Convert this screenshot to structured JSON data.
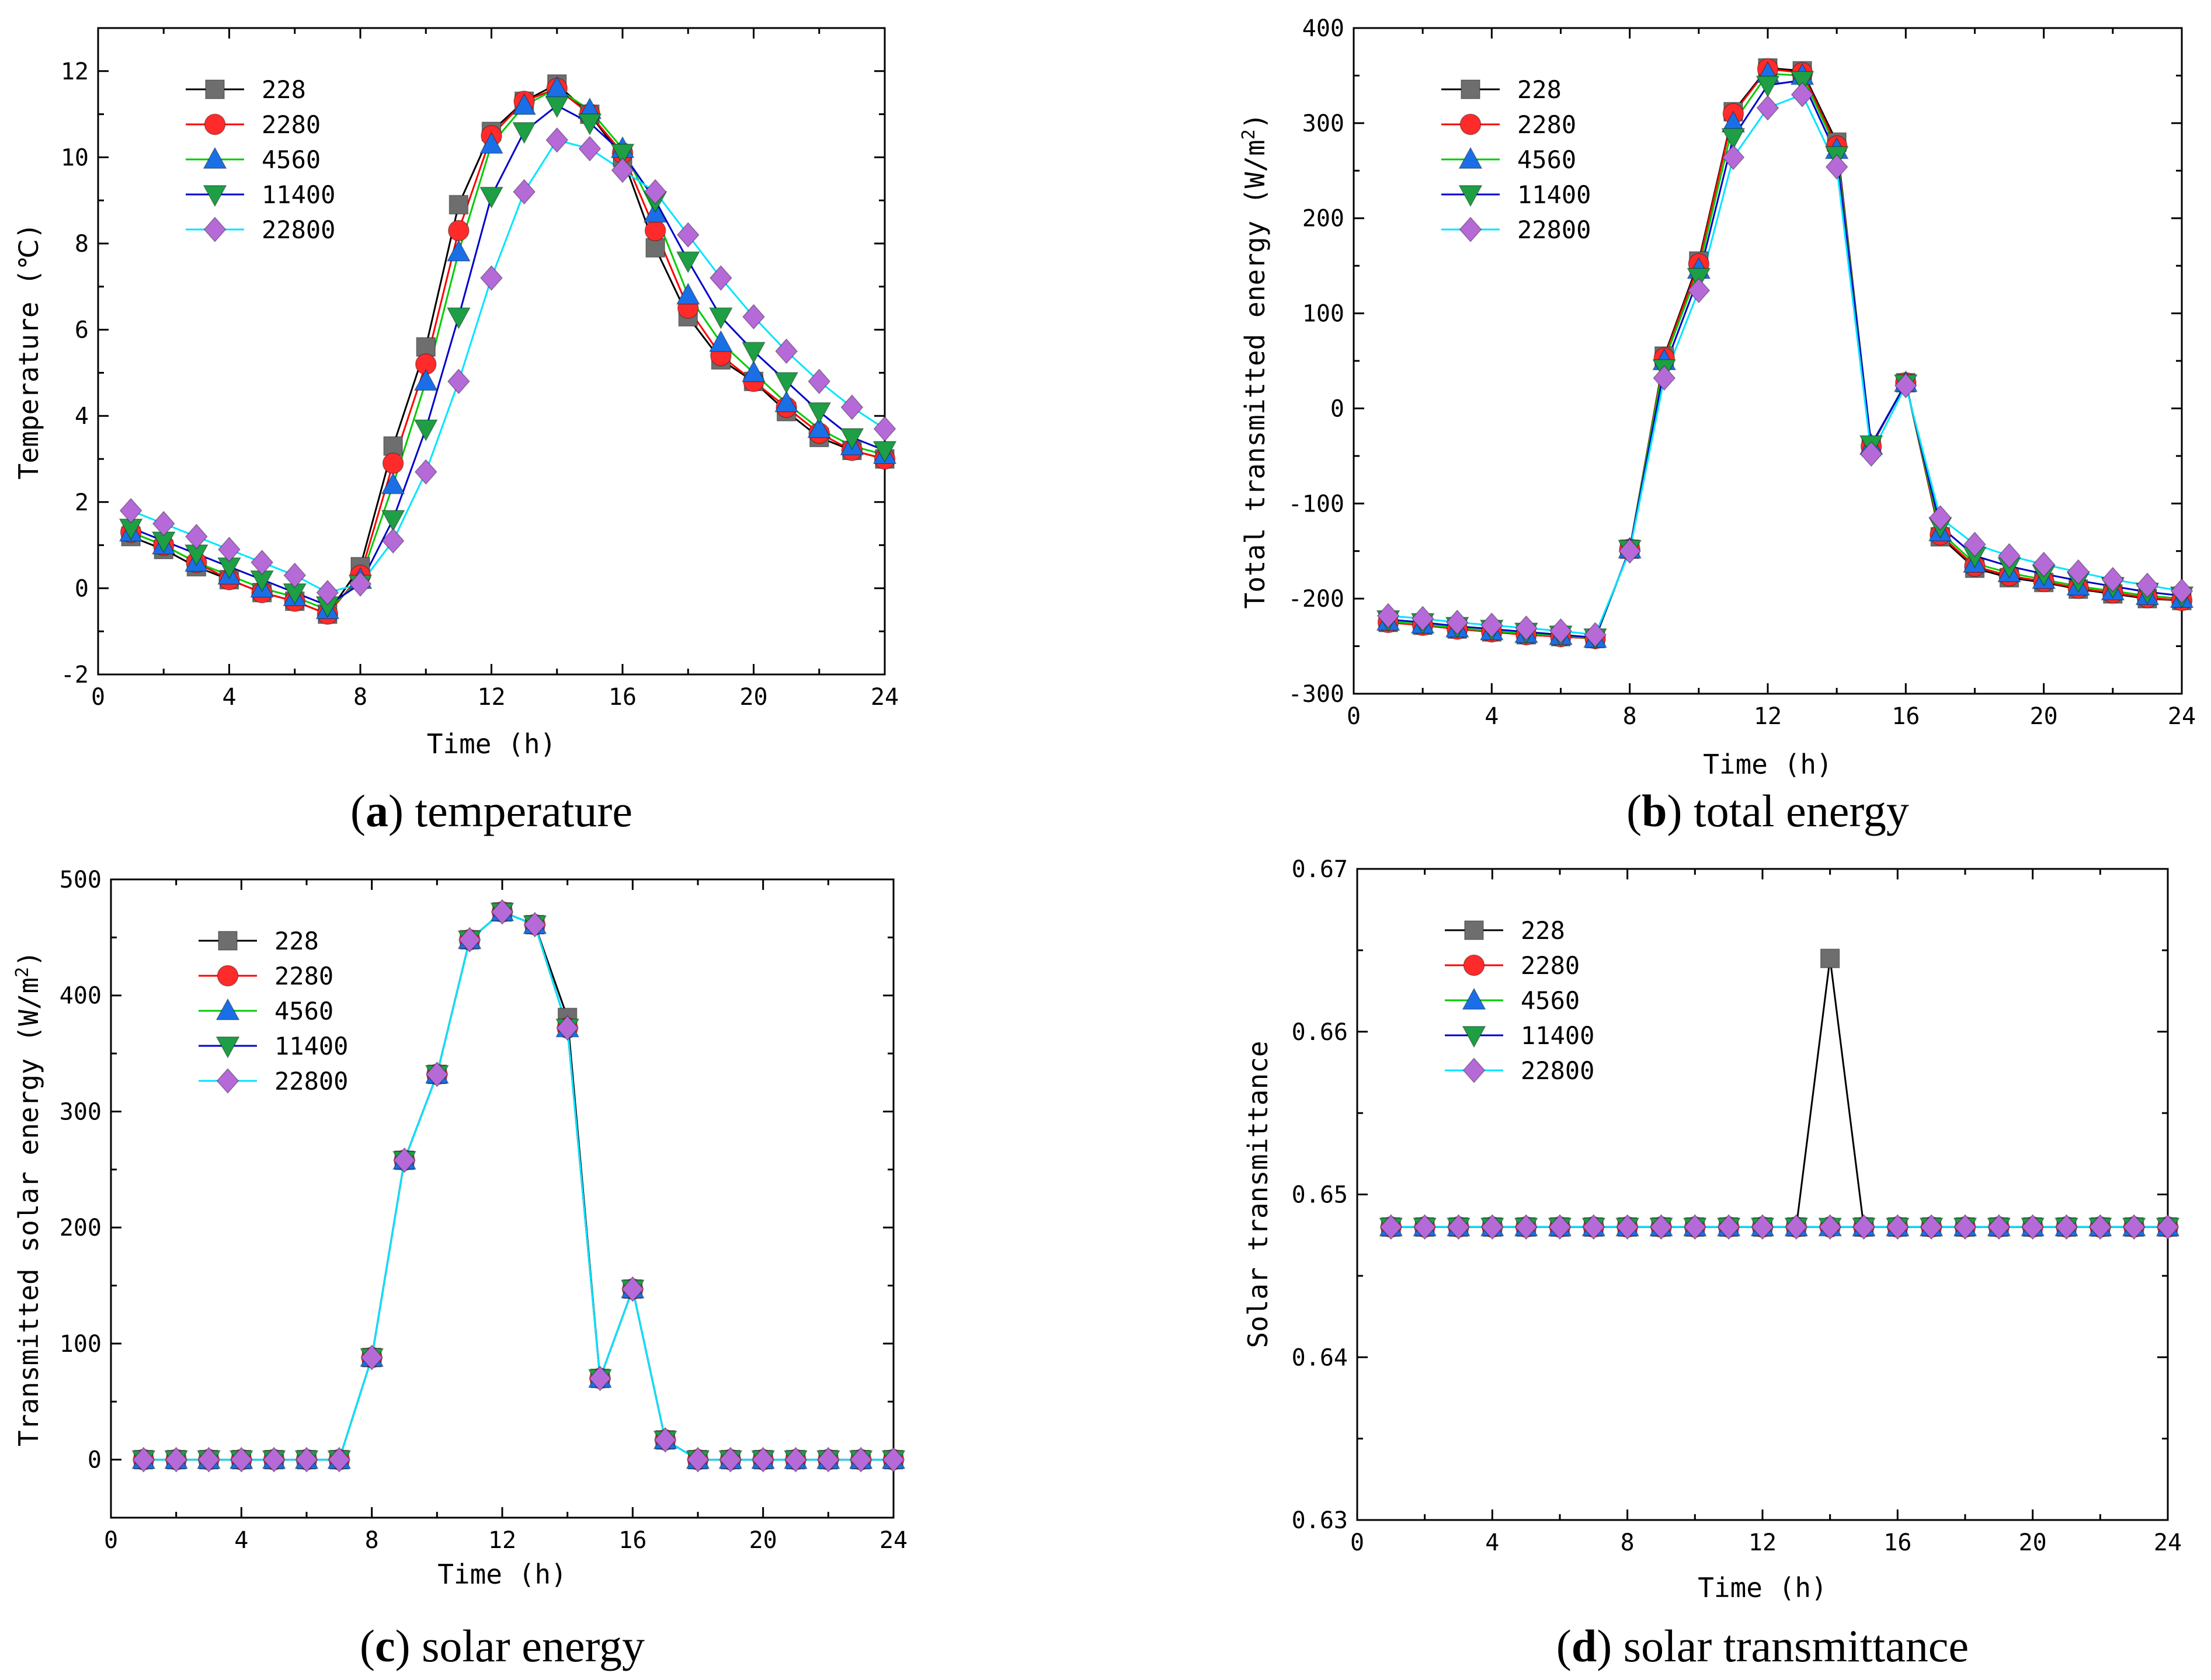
{
  "colors": {
    "228": "#6e6e6e",
    "2280": "#ff2b2b",
    "4560": "#1a6fe6",
    "11400": "#1e9e45",
    "22800": "#b56ad8",
    "line_228": "#000000",
    "line_2280": "#ff0000",
    "line_4560": "#00cc00",
    "line_11400": "#0000cc",
    "line_22800": "#00e5ff"
  },
  "chart_data": [
    {
      "id": "a",
      "type": "line",
      "caption_letter": "a",
      "caption_text": " temperature",
      "xlabel": "Time (h)",
      "ylabel": "Temperature (℃)",
      "xlim": [
        0,
        24
      ],
      "ylim": [
        -2,
        13
      ],
      "xticks": [
        0,
        4,
        8,
        12,
        16,
        20,
        24
      ],
      "yticks": [
        -2,
        0,
        2,
        4,
        6,
        8,
        10,
        12
      ],
      "ytick_labels": [
        "-2",
        "0",
        "2",
        "4",
        "6",
        "8",
        "10",
        "12"
      ],
      "legend_position": "top-left",
      "x": [
        1,
        2,
        3,
        4,
        5,
        6,
        7,
        8,
        9,
        10,
        11,
        12,
        13,
        14,
        15,
        16,
        17,
        18,
        19,
        20,
        21,
        22,
        23,
        24
      ],
      "series": [
        {
          "name": "228",
          "marker": "square",
          "values": [
            1.2,
            0.9,
            0.5,
            0.2,
            -0.1,
            -0.3,
            -0.6,
            0.5,
            3.3,
            5.6,
            8.9,
            10.6,
            11.3,
            11.7,
            11.0,
            10.0,
            7.9,
            6.3,
            5.3,
            4.8,
            4.1,
            3.5,
            3.2,
            3.0
          ]
        },
        {
          "name": "2280",
          "marker": "circle",
          "values": [
            1.3,
            1.0,
            0.6,
            0.2,
            -0.1,
            -0.3,
            -0.6,
            0.3,
            2.9,
            5.2,
            8.3,
            10.5,
            11.3,
            11.6,
            11.0,
            10.1,
            8.3,
            6.5,
            5.4,
            4.8,
            4.2,
            3.6,
            3.2,
            3.0
          ]
        },
        {
          "name": "4560",
          "marker": "triangle-up",
          "values": [
            1.3,
            1.0,
            0.6,
            0.3,
            0.0,
            -0.2,
            -0.5,
            0.2,
            2.4,
            4.8,
            7.8,
            10.3,
            11.2,
            11.6,
            11.1,
            10.2,
            8.7,
            6.8,
            5.7,
            5.0,
            4.3,
            3.7,
            3.3,
            3.1
          ]
        },
        {
          "name": "11400",
          "marker": "triangle-down",
          "values": [
            1.4,
            1.1,
            0.8,
            0.5,
            0.2,
            -0.1,
            -0.4,
            0.1,
            1.6,
            3.7,
            6.3,
            9.1,
            10.6,
            11.2,
            10.8,
            10.1,
            9.0,
            7.6,
            6.3,
            5.5,
            4.8,
            4.1,
            3.5,
            3.2
          ]
        },
        {
          "name": "22800",
          "marker": "diamond",
          "values": [
            1.8,
            1.5,
            1.2,
            0.9,
            0.6,
            0.3,
            -0.1,
            0.1,
            1.1,
            2.7,
            4.8,
            7.2,
            9.2,
            10.4,
            10.2,
            9.7,
            9.2,
            8.2,
            7.2,
            6.3,
            5.5,
            4.8,
            4.2,
            3.7
          ]
        }
      ]
    },
    {
      "id": "b",
      "type": "line",
      "caption_letter": "b",
      "caption_text": " total energy",
      "xlabel": "Time (h)",
      "ylabel": "Total transmitted energy (W/m²)",
      "xlim": [
        0,
        24
      ],
      "ylim": [
        -300,
        400
      ],
      "xticks": [
        0,
        4,
        8,
        12,
        16,
        20,
        24
      ],
      "yticks": [
        -300,
        -200,
        -100,
        0,
        100,
        200,
        300,
        400
      ],
      "ytick_labels": [
        "-300",
        "-200",
        "-100",
        "0",
        "100",
        "200",
        "300",
        "400"
      ],
      "legend_position": "top-left",
      "x": [
        1,
        2,
        3,
        4,
        5,
        6,
        7,
        8,
        9,
        10,
        11,
        12,
        13,
        14,
        15,
        16,
        17,
        18,
        19,
        20,
        21,
        22,
        23,
        24
      ],
      "series": [
        {
          "name": "228",
          "marker": "square",
          "values": [
            -225,
            -228,
            -232,
            -235,
            -238,
            -240,
            -242,
            -148,
            55,
            155,
            312,
            358,
            355,
            280,
            -40,
            27,
            -135,
            -168,
            -178,
            -183,
            -190,
            -195,
            -200,
            -202
          ]
        },
        {
          "name": "2280",
          "marker": "circle",
          "values": [
            -225,
            -228,
            -232,
            -235,
            -238,
            -240,
            -242,
            -148,
            53,
            152,
            310,
            357,
            353,
            276,
            -40,
            27,
            -133,
            -166,
            -176,
            -182,
            -189,
            -194,
            -199,
            -202
          ]
        },
        {
          "name": "4560",
          "marker": "triangle-up",
          "values": [
            -224,
            -227,
            -231,
            -234,
            -237,
            -239,
            -242,
            -148,
            50,
            146,
            300,
            352,
            350,
            272,
            -39,
            27,
            -130,
            -163,
            -173,
            -180,
            -187,
            -192,
            -197,
            -200
          ]
        },
        {
          "name": "11400",
          "marker": "triangle-down",
          "values": [
            -222,
            -225,
            -229,
            -232,
            -235,
            -238,
            -241,
            -148,
            42,
            138,
            285,
            340,
            345,
            266,
            -38,
            26,
            -124,
            -155,
            -166,
            -174,
            -181,
            -187,
            -193,
            -197
          ]
        },
        {
          "name": "22800",
          "marker": "diamond",
          "values": [
            -218,
            -221,
            -225,
            -228,
            -231,
            -234,
            -238,
            -150,
            32,
            124,
            264,
            316,
            330,
            254,
            -48,
            24,
            -115,
            -143,
            -155,
            -164,
            -172,
            -180,
            -186,
            -192
          ]
        }
      ]
    },
    {
      "id": "c",
      "type": "line",
      "caption_letter": "c",
      "caption_text": " solar energy",
      "xlabel": "Time (h)",
      "ylabel": "Transmitted solar energy (W/m²)",
      "xlim": [
        0,
        24
      ],
      "ylim": [
        -50,
        500
      ],
      "xticks": [
        0,
        4,
        8,
        12,
        16,
        20,
        24
      ],
      "yticks": [
        0,
        100,
        200,
        300,
        400,
        500
      ],
      "ytick_labels": [
        "0",
        "100",
        "200",
        "300",
        "400",
        "500"
      ],
      "legend_position": "top-left",
      "x": [
        1,
        2,
        3,
        4,
        5,
        6,
        7,
        8,
        9,
        10,
        11,
        12,
        13,
        14,
        15,
        16,
        17,
        18,
        19,
        20,
        21,
        22,
        23,
        24
      ],
      "series": [
        {
          "name": "228",
          "marker": "square",
          "values": [
            0,
            0,
            0,
            0,
            0,
            0,
            0,
            88,
            258,
            332,
            448,
            472,
            461,
            381,
            70,
            147,
            17,
            0,
            0,
            0,
            0,
            0,
            0,
            0
          ]
        },
        {
          "name": "2280",
          "marker": "circle",
          "values": [
            0,
            0,
            0,
            0,
            0,
            0,
            0,
            88,
            258,
            332,
            448,
            472,
            461,
            372,
            70,
            147,
            17,
            0,
            0,
            0,
            0,
            0,
            0,
            0
          ]
        },
        {
          "name": "4560",
          "marker": "triangle-up",
          "values": [
            0,
            0,
            0,
            0,
            0,
            0,
            0,
            88,
            258,
            332,
            448,
            472,
            461,
            372,
            70,
            147,
            17,
            0,
            0,
            0,
            0,
            0,
            0,
            0
          ]
        },
        {
          "name": "11400",
          "marker": "triangle-down",
          "values": [
            0,
            0,
            0,
            0,
            0,
            0,
            0,
            88,
            258,
            332,
            448,
            472,
            461,
            372,
            70,
            147,
            17,
            0,
            0,
            0,
            0,
            0,
            0,
            0
          ]
        },
        {
          "name": "22800",
          "marker": "diamond",
          "values": [
            0,
            0,
            0,
            0,
            0,
            0,
            0,
            88,
            258,
            332,
            448,
            472,
            461,
            372,
            70,
            147,
            17,
            0,
            0,
            0,
            0,
            0,
            0,
            0
          ]
        }
      ]
    },
    {
      "id": "d",
      "type": "line",
      "caption_letter": "d",
      "caption_text": " solar transmittance",
      "xlabel": "Time (h)",
      "ylabel": "Solar transmittance",
      "xlim": [
        0,
        24
      ],
      "ylim": [
        0.63,
        0.67
      ],
      "xticks": [
        0,
        4,
        8,
        12,
        16,
        20,
        24
      ],
      "yticks": [
        0.63,
        0.64,
        0.65,
        0.66,
        0.67
      ],
      "ytick_labels": [
        "0.63",
        "0.64",
        "0.65",
        "0.66",
        "0.67"
      ],
      "legend_position": "top-left",
      "x": [
        1,
        2,
        3,
        4,
        5,
        6,
        7,
        8,
        9,
        10,
        11,
        12,
        13,
        14,
        15,
        16,
        17,
        18,
        19,
        20,
        21,
        22,
        23,
        24
      ],
      "series": [
        {
          "name": "228",
          "marker": "square",
          "values": [
            0.648,
            0.648,
            0.648,
            0.648,
            0.648,
            0.648,
            0.648,
            0.648,
            0.648,
            0.648,
            0.648,
            0.648,
            0.648,
            0.6645,
            0.648,
            0.648,
            0.648,
            0.648,
            0.648,
            0.648,
            0.648,
            0.648,
            0.648,
            0.648
          ]
        },
        {
          "name": "2280",
          "marker": "circle",
          "values": [
            0.648,
            0.648,
            0.648,
            0.648,
            0.648,
            0.648,
            0.648,
            0.648,
            0.648,
            0.648,
            0.648,
            0.648,
            0.648,
            0.648,
            0.648,
            0.648,
            0.648,
            0.648,
            0.648,
            0.648,
            0.648,
            0.648,
            0.648,
            0.648
          ]
        },
        {
          "name": "4560",
          "marker": "triangle-up",
          "values": [
            0.648,
            0.648,
            0.648,
            0.648,
            0.648,
            0.648,
            0.648,
            0.648,
            0.648,
            0.648,
            0.648,
            0.648,
            0.648,
            0.648,
            0.648,
            0.648,
            0.648,
            0.648,
            0.648,
            0.648,
            0.648,
            0.648,
            0.648,
            0.648
          ]
        },
        {
          "name": "11400",
          "marker": "triangle-down",
          "values": [
            0.648,
            0.648,
            0.648,
            0.648,
            0.648,
            0.648,
            0.648,
            0.648,
            0.648,
            0.648,
            0.648,
            0.648,
            0.648,
            0.648,
            0.648,
            0.648,
            0.648,
            0.648,
            0.648,
            0.648,
            0.648,
            0.648,
            0.648,
            0.648
          ]
        },
        {
          "name": "22800",
          "marker": "diamond",
          "values": [
            0.648,
            0.648,
            0.648,
            0.648,
            0.648,
            0.648,
            0.648,
            0.648,
            0.648,
            0.648,
            0.648,
            0.648,
            0.648,
            0.648,
            0.648,
            0.648,
            0.648,
            0.648,
            0.648,
            0.648,
            0.648,
            0.648,
            0.648,
            0.648
          ]
        }
      ]
    }
  ]
}
